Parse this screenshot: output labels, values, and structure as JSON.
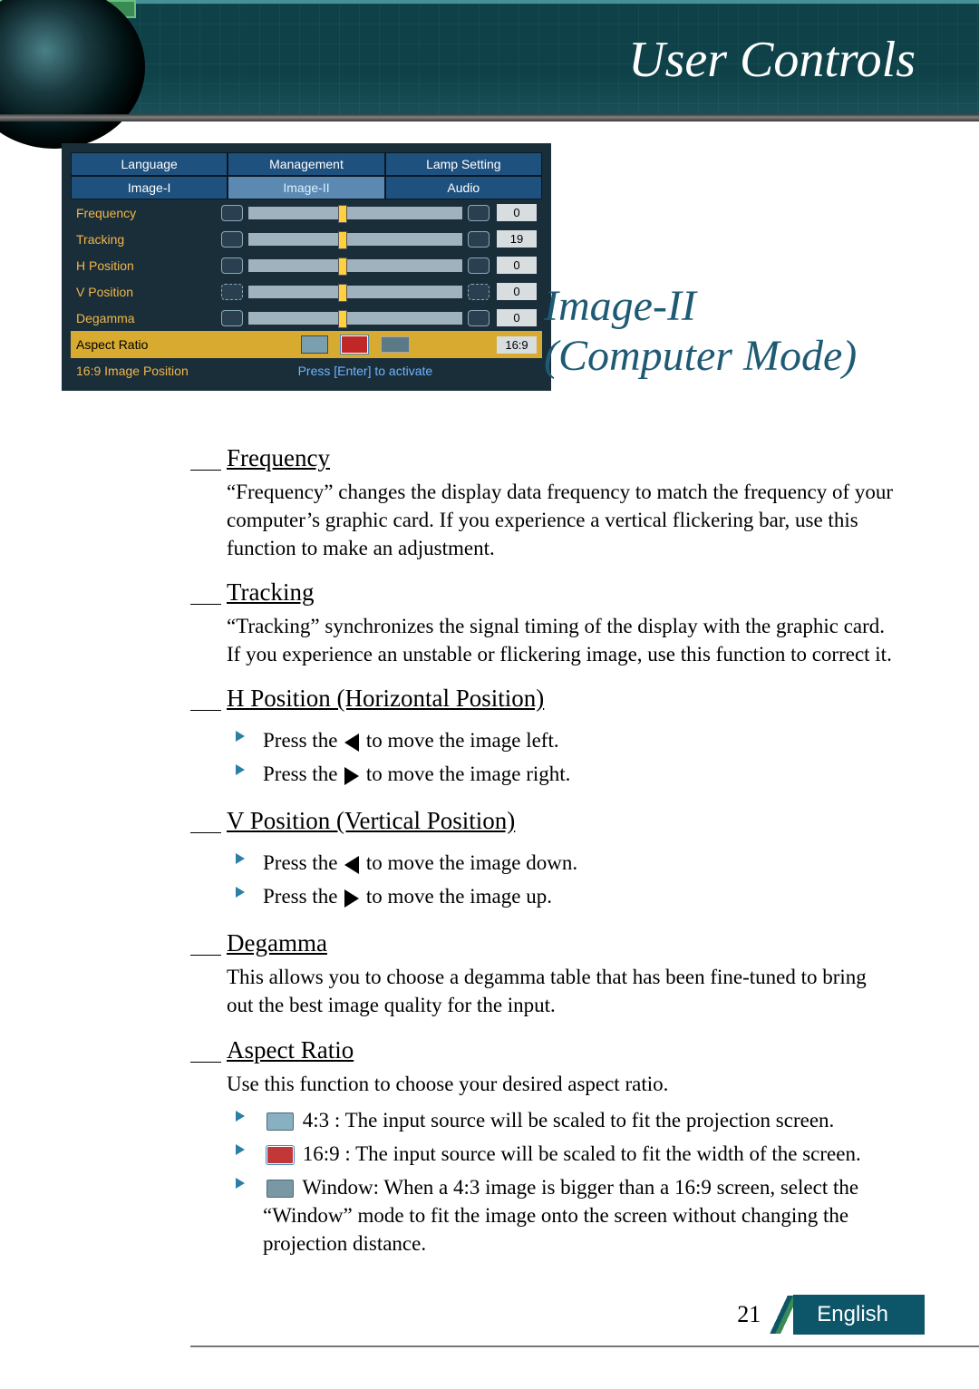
{
  "header": {
    "title": "User Controls"
  },
  "menu": {
    "tabs_row1": [
      "Language",
      "Management",
      "Lamp Setting"
    ],
    "tabs_row2": [
      "Image-I",
      "Image-II",
      "Audio"
    ],
    "active_tab_index": 1,
    "rows": [
      {
        "label": "Frequency",
        "value": "0"
      },
      {
        "label": "Tracking",
        "value": "19"
      },
      {
        "label": "H Position",
        "value": "0"
      },
      {
        "label": "V Position",
        "value": "0"
      },
      {
        "label": "Degamma",
        "value": "0"
      }
    ],
    "aspect_row": {
      "label": "Aspect Ratio",
      "value": "16:9"
    },
    "enter_row": {
      "label": "16:9 Image Position",
      "hint": "Press [Enter] to activate"
    }
  },
  "section_title_line1": "Image-II",
  "section_title_line2": "(Computer Mode)",
  "sections": {
    "frequency": {
      "head": "Frequency",
      "text": "“Frequency” changes the display data frequency to match the frequency of your computer’s graphic card. If you experience a vertical flickering bar, use this function to make an adjustment."
    },
    "tracking": {
      "head": "Tracking",
      "text": "“Tracking” synchronizes the signal timing of the display with the graphic card. If you experience an unstable or flickering image, use this function to correct it."
    },
    "hpos": {
      "head": "H Position (Horizontal Position)",
      "b1a": "Press the ",
      "b1b": " to move the image left.",
      "b2a": "Press the ",
      "b2b": " to move the image right."
    },
    "vpos": {
      "head": "V Position (Vertical Position)",
      "b1a": "Press the ",
      "b1b": " to move the image down.",
      "b2a": "Press the ",
      "b2b": " to move the image up."
    },
    "degamma": {
      "head": "Degamma",
      "text": "This allows you to choose a degamma table that has been fine-tuned to bring out the best image quality for the input."
    },
    "aspect": {
      "head": "Aspect Ratio",
      "intro": "Use this function to choose your desired aspect ratio.",
      "b1": " 4:3 : The input source will be scaled to fit the projection screen.",
      "b2": " 16:9 : The input source will be scaled to fit the width of the screen.",
      "b3": " Window: When a 4:3 image is bigger than a 16:9 screen, select the “Window” mode to fit the image onto the screen without changing the projection distance."
    }
  },
  "footer": {
    "page": "21",
    "lang": "English"
  },
  "colors": {
    "header_bg": "#0e4248",
    "accent_green": "#3a8a55",
    "menu_bg": "#1a2e3a",
    "tab_blue": "#1f517e",
    "tab_blue_light": "#5b89b2",
    "label_orange": "#f2b648",
    "highlight_yellow": "#d8aa30",
    "section_blue": "#1f5a74",
    "bullet_blue": "#2b7fa6",
    "footer_teal": "#0d5568"
  }
}
